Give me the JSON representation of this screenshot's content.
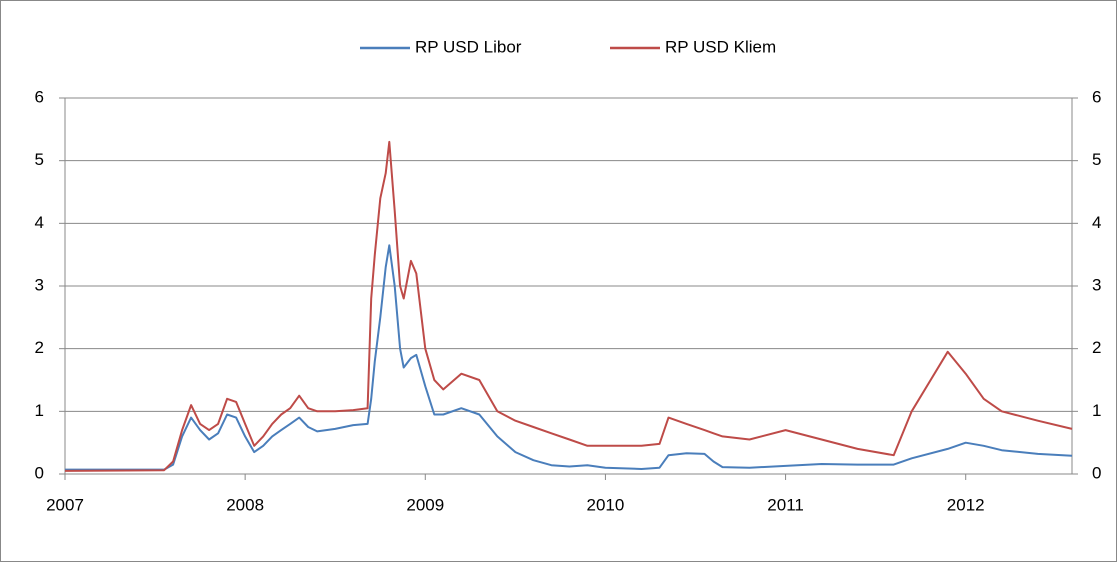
{
  "chart_data": {
    "type": "line",
    "x": [
      2007.0,
      2007.55,
      2007.6,
      2007.65,
      2007.7,
      2007.75,
      2007.8,
      2007.85,
      2007.9,
      2007.95,
      2008.0,
      2008.05,
      2008.1,
      2008.15,
      2008.2,
      2008.25,
      2008.3,
      2008.35,
      2008.4,
      2008.5,
      2008.6,
      2008.68,
      2008.7,
      2008.72,
      2008.75,
      2008.78,
      2008.8,
      2008.83,
      2008.86,
      2008.88,
      2008.92,
      2008.95,
      2009.0,
      2009.05,
      2009.1,
      2009.2,
      2009.3,
      2009.4,
      2009.5,
      2009.6,
      2009.7,
      2009.8,
      2009.9,
      2010.0,
      2010.2,
      2010.3,
      2010.35,
      2010.45,
      2010.55,
      2010.6,
      2010.65,
      2010.8,
      2011.0,
      2011.2,
      2011.4,
      2011.6,
      2011.7,
      2011.9,
      2012.0,
      2012.1,
      2012.2,
      2012.4,
      2012.59
    ],
    "series": [
      {
        "name": "RP USD Libor",
        "color": "#4a7ebb",
        "values": [
          0.07,
          0.07,
          0.15,
          0.6,
          0.9,
          0.7,
          0.55,
          0.65,
          0.95,
          0.9,
          0.6,
          0.35,
          0.45,
          0.6,
          0.7,
          0.8,
          0.9,
          0.75,
          0.68,
          0.72,
          0.78,
          0.8,
          1.2,
          1.8,
          2.5,
          3.3,
          3.65,
          3.0,
          2.0,
          1.7,
          1.85,
          1.9,
          1.4,
          0.95,
          0.95,
          1.05,
          0.95,
          0.6,
          0.35,
          0.22,
          0.14,
          0.12,
          0.14,
          0.1,
          0.08,
          0.1,
          0.3,
          0.33,
          0.32,
          0.2,
          0.11,
          0.1,
          0.13,
          0.16,
          0.15,
          0.15,
          0.25,
          0.4,
          0.5,
          0.45,
          0.38,
          0.32,
          0.29
        ]
      },
      {
        "name": "RP USD Kliem",
        "color": "#be4b48",
        "values": [
          0.05,
          0.06,
          0.2,
          0.7,
          1.1,
          0.8,
          0.7,
          0.8,
          1.2,
          1.15,
          0.8,
          0.45,
          0.6,
          0.8,
          0.95,
          1.05,
          1.25,
          1.05,
          1.0,
          1.0,
          1.02,
          1.05,
          2.8,
          3.5,
          4.4,
          4.8,
          5.3,
          4.2,
          3.0,
          2.8,
          3.4,
          3.2,
          2.0,
          1.5,
          1.35,
          1.6,
          1.5,
          1.0,
          0.85,
          0.75,
          0.65,
          0.55,
          0.45,
          0.45,
          0.45,
          0.48,
          0.9,
          0.8,
          0.7,
          0.65,
          0.6,
          0.55,
          0.7,
          0.55,
          0.4,
          0.3,
          1.0,
          1.95,
          1.6,
          1.2,
          1.0,
          0.85,
          0.72
        ]
      }
    ],
    "xlim": [
      2007,
      2012.59
    ],
    "xticks": [
      2007,
      2008,
      2009,
      2010,
      2011,
      2012
    ],
    "ylim": [
      0,
      6
    ],
    "yticks": [
      0,
      1,
      2,
      3,
      4,
      5,
      6
    ],
    "y2lim": [
      0,
      6
    ],
    "y2ticks": [
      0,
      1,
      2,
      3,
      4,
      5,
      6
    ],
    "grid": true,
    "legend": "top"
  }
}
